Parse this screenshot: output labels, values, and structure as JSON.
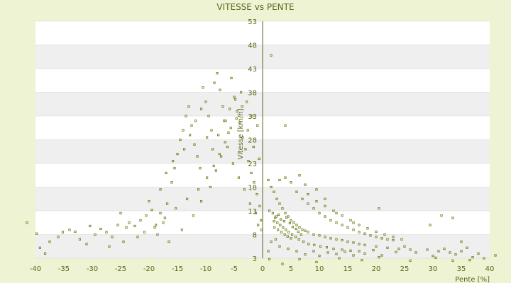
{
  "chart_data": {
    "type": "scatter",
    "title": "VITESSE vs PENTE",
    "xlabel": "Pente [%]",
    "ylabel": "Vitesse [km/h]",
    "xlim": [
      -40,
      40
    ],
    "ylim": [
      3,
      53
    ],
    "x_ticks": [
      "-40",
      "-35",
      "-30",
      "-25",
      "-20",
      "-15",
      "-10",
      "-5",
      "0",
      "5",
      "10",
      "15",
      "20",
      "25",
      "30",
      "35",
      "40"
    ],
    "y_ticks": [
      "3",
      "8",
      "13",
      "18",
      "23",
      "28",
      "33",
      "38",
      "43",
      "48",
      "53"
    ],
    "grid": true,
    "legend": "none",
    "colors": {
      "background": "#eef3d3",
      "plot_band_light": "#ffffff",
      "plot_band_dark": "#efefef",
      "grid": "#d8d8d8",
      "marker": "#6b7a12",
      "text": "#5a6418",
      "axis": "#5a6418"
    },
    "series": [
      {
        "points": [
          [
            -41.5,
            10.5
          ],
          [
            -39.8,
            8.2
          ],
          [
            -39.2,
            5.2
          ],
          [
            -38.3,
            4.0
          ],
          [
            -37.5,
            6.5
          ],
          [
            -36.0,
            7.5
          ],
          [
            -35.2,
            8.5
          ],
          [
            -34.0,
            9.0
          ],
          [
            -33.0,
            8.6
          ],
          [
            -32.2,
            7.0
          ],
          [
            -31.0,
            6.0
          ],
          [
            -30.4,
            9.8
          ],
          [
            -29.5,
            8.0
          ],
          [
            -28.5,
            9.2
          ],
          [
            -27.5,
            8.5
          ],
          [
            -26.5,
            7.5
          ],
          [
            -25.5,
            10.0
          ],
          [
            -25.0,
            12.5
          ],
          [
            -24.0,
            9.5
          ],
          [
            -23.5,
            10.5
          ],
          [
            -22.5,
            9.8
          ],
          [
            -21.5,
            11.0
          ],
          [
            -20.5,
            12.0
          ],
          [
            -19.5,
            13.2
          ],
          [
            -19.0,
            9.5
          ],
          [
            -18.0,
            12.5
          ],
          [
            -17.5,
            10.5
          ],
          [
            -16.8,
            14.5
          ],
          [
            -16.0,
            19.0
          ],
          [
            -15.5,
            22.0
          ],
          [
            -15.0,
            25.0
          ],
          [
            -14.5,
            28.0
          ],
          [
            -14.0,
            30.0
          ],
          [
            -13.5,
            33.0
          ],
          [
            -13.0,
            35.0
          ],
          [
            -12.5,
            31.0
          ],
          [
            -12.0,
            27.0
          ],
          [
            -11.5,
            24.5
          ],
          [
            -11.0,
            22.0
          ],
          [
            -10.5,
            39.0
          ],
          [
            -10.0,
            36.0
          ],
          [
            -9.5,
            33.0
          ],
          [
            -9.0,
            30.0
          ],
          [
            -8.5,
            40.0
          ],
          [
            -8.0,
            42.0
          ],
          [
            -7.5,
            38.5
          ],
          [
            -7.0,
            35.0
          ],
          [
            -6.5,
            32.0
          ],
          [
            -6.0,
            29.5
          ],
          [
            -5.5,
            41.0
          ],
          [
            -5.0,
            37.0
          ],
          [
            -4.5,
            34.0
          ],
          [
            -4.0,
            31.5
          ],
          [
            -3.5,
            28.5
          ],
          [
            -3.0,
            26.0
          ],
          [
            -2.5,
            23.5
          ],
          [
            -2.0,
            21.0
          ],
          [
            -1.5,
            19.0
          ],
          [
            -1.0,
            16.5
          ],
          [
            -0.5,
            14.0
          ],
          [
            -0.3,
            11.0
          ],
          [
            -0.2,
            9.0
          ],
          [
            -22.0,
            7.5
          ],
          [
            -18.5,
            8.0
          ],
          [
            -16.5,
            6.5
          ],
          [
            -14.2,
            9.0
          ],
          [
            -12.2,
            12.0
          ],
          [
            -10.8,
            15.0
          ],
          [
            -9.2,
            18.0
          ],
          [
            -8.2,
            21.5
          ],
          [
            -7.3,
            24.5
          ],
          [
            -6.2,
            26.5
          ],
          [
            -5.2,
            23.0
          ],
          [
            -4.2,
            20.0
          ],
          [
            -3.2,
            17.5
          ],
          [
            -2.2,
            14.5
          ],
          [
            -1.2,
            12.5
          ],
          [
            -0.8,
            10.0
          ],
          [
            -20.0,
            15.0
          ],
          [
            -18.0,
            17.5
          ],
          [
            -17.0,
            21.0
          ],
          [
            -15.8,
            23.5
          ],
          [
            -13.8,
            26.0
          ],
          [
            -12.8,
            29.0
          ],
          [
            -11.8,
            32.0
          ],
          [
            -10.8,
            34.5
          ],
          [
            -9.8,
            28.5
          ],
          [
            -8.8,
            26.0
          ],
          [
            -7.8,
            29.0
          ],
          [
            -6.8,
            32.0
          ],
          [
            -5.8,
            34.5
          ],
          [
            -4.8,
            36.5
          ],
          [
            -3.8,
            38.0
          ],
          [
            -2.8,
            36.0
          ],
          [
            -1.8,
            33.0
          ],
          [
            -0.9,
            31.0
          ],
          [
            -27.0,
            5.5
          ],
          [
            -24.5,
            6.5
          ],
          [
            -20.8,
            8.5
          ],
          [
            -18.8,
            10.0
          ],
          [
            -17.2,
            11.5
          ],
          [
            -15.3,
            13.5
          ],
          [
            -13.3,
            15.5
          ],
          [
            -11.3,
            17.5
          ],
          [
            -9.8,
            20.0
          ],
          [
            -8.6,
            22.5
          ],
          [
            -7.6,
            25.0
          ],
          [
            -6.6,
            27.5
          ],
          [
            -5.6,
            30.5
          ],
          [
            -4.6,
            32.5
          ],
          [
            -3.6,
            35.0
          ],
          [
            -2.6,
            30.0
          ],
          [
            -1.6,
            26.5
          ],
          [
            -0.6,
            24.0
          ],
          [
            1.5,
            45.8
          ],
          [
            4.0,
            31.0
          ],
          [
            1.0,
            19.5
          ],
          [
            1.5,
            18.0
          ],
          [
            2.0,
            17.0
          ],
          [
            2.5,
            15.5
          ],
          [
            3.0,
            14.5
          ],
          [
            3.5,
            13.5
          ],
          [
            4.0,
            12.5
          ],
          [
            4.5,
            11.8
          ],
          [
            5.0,
            11.0
          ],
          [
            5.5,
            10.5
          ],
          [
            6.0,
            10.0
          ],
          [
            6.5,
            9.5
          ],
          [
            7.0,
            9.0
          ],
          [
            7.5,
            8.8
          ],
          [
            8.0,
            8.5
          ],
          [
            9.0,
            8.0
          ],
          [
            10.0,
            7.8
          ],
          [
            11.0,
            7.5
          ],
          [
            12.0,
            7.2
          ],
          [
            13.0,
            7.0
          ],
          [
            14.0,
            6.8
          ],
          [
            15.0,
            6.5
          ],
          [
            16.0,
            6.3
          ],
          [
            17.0,
            6.0
          ],
          [
            18.0,
            5.8
          ],
          [
            20.0,
            5.5
          ],
          [
            22.0,
            5.2
          ],
          [
            24.0,
            5.0
          ],
          [
            26.0,
            4.8
          ],
          [
            1.2,
            13.0
          ],
          [
            1.8,
            12.5
          ],
          [
            2.2,
            11.5
          ],
          [
            2.6,
            10.5
          ],
          [
            3.1,
            10.0
          ],
          [
            3.6,
            9.5
          ],
          [
            4.1,
            9.0
          ],
          [
            4.6,
            8.5
          ],
          [
            5.2,
            8.0
          ],
          [
            5.8,
            7.5
          ],
          [
            6.4,
            7.0
          ],
          [
            7.2,
            6.5
          ],
          [
            8.1,
            6.0
          ],
          [
            9.1,
            5.8
          ],
          [
            10.2,
            5.5
          ],
          [
            11.3,
            5.3
          ],
          [
            12.5,
            5.0
          ],
          [
            14.0,
            4.8
          ],
          [
            15.5,
            4.6
          ],
          [
            17.0,
            4.5
          ],
          [
            2.0,
            10.8
          ],
          [
            2.4,
            11.8
          ],
          [
            2.8,
            12.2
          ],
          [
            3.2,
            11.2
          ],
          [
            3.8,
            10.8
          ],
          [
            4.2,
            11.6
          ],
          [
            4.8,
            10.4
          ],
          [
            5.3,
            9.6
          ],
          [
            5.9,
            9.2
          ],
          [
            6.3,
            8.6
          ],
          [
            6.8,
            8.0
          ],
          [
            2.1,
            9.5
          ],
          [
            2.7,
            9.0
          ],
          [
            3.3,
            8.5
          ],
          [
            3.9,
            8.0
          ],
          [
            4.4,
            7.6
          ],
          [
            5.0,
            7.2
          ],
          [
            6.0,
            17.0
          ],
          [
            7.0,
            15.5
          ],
          [
            8.0,
            14.5
          ],
          [
            9.0,
            13.5
          ],
          [
            10.0,
            12.5
          ],
          [
            11.0,
            11.8
          ],
          [
            12.0,
            11.0
          ],
          [
            13.0,
            10.5
          ],
          [
            14.0,
            10.0
          ],
          [
            15.0,
            9.5
          ],
          [
            16.0,
            9.0
          ],
          [
            17.0,
            8.5
          ],
          [
            18.0,
            8.2
          ],
          [
            19.0,
            7.8
          ],
          [
            20.0,
            7.5
          ],
          [
            21.0,
            7.2
          ],
          [
            22.0,
            7.0
          ],
          [
            23.0,
            6.8
          ],
          [
            8.0,
            16.5
          ],
          [
            9.5,
            15.0
          ],
          [
            11.0,
            14.0
          ],
          [
            12.5,
            13.0
          ],
          [
            14.0,
            12.0
          ],
          [
            15.5,
            11.0
          ],
          [
            17.0,
            10.0
          ],
          [
            18.5,
            9.3
          ],
          [
            20.0,
            8.6
          ],
          [
            21.5,
            8.0
          ],
          [
            23.0,
            7.5
          ],
          [
            24.5,
            7.0
          ],
          [
            1.0,
            4.5
          ],
          [
            1.5,
            6.5
          ],
          [
            2.3,
            7.0
          ],
          [
            3.0,
            5.5
          ],
          [
            4.5,
            5.0
          ],
          [
            6.0,
            4.5
          ],
          [
            7.5,
            3.8
          ],
          [
            9.0,
            4.5
          ],
          [
            10.0,
            3.5
          ],
          [
            11.5,
            4.2
          ],
          [
            13.0,
            3.9
          ],
          [
            14.5,
            4.4
          ],
          [
            16.0,
            3.6
          ],
          [
            18.0,
            4.0
          ],
          [
            19.5,
            4.7
          ],
          [
            21.0,
            3.6
          ],
          [
            23.5,
            4.3
          ],
          [
            25.0,
            5.5
          ],
          [
            27.0,
            4.2
          ],
          [
            29.0,
            4.8
          ],
          [
            30.0,
            3.5
          ],
          [
            31.0,
            4.5
          ],
          [
            32.0,
            5.0
          ],
          [
            33.0,
            4.2
          ],
          [
            34.0,
            3.8
          ],
          [
            35.0,
            4.5
          ],
          [
            36.0,
            5.2
          ],
          [
            37.0,
            3.2
          ],
          [
            38.0,
            4.0
          ],
          [
            39.0,
            3.0
          ],
          [
            1.2,
            2.8
          ],
          [
            3.5,
            1.8
          ],
          [
            6.5,
            2.8
          ],
          [
            9.5,
            2.2
          ],
          [
            13.5,
            3.0
          ],
          [
            17.5,
            2.6
          ],
          [
            20.5,
            3.2
          ],
          [
            26.0,
            2.5
          ],
          [
            30.5,
            3.1
          ],
          [
            33.5,
            2.5
          ],
          [
            36.5,
            2.6
          ],
          [
            41.0,
            3.6
          ],
          [
            20.5,
            13.5
          ],
          [
            29.5,
            10.0
          ],
          [
            31.5,
            12.0
          ],
          [
            33.5,
            11.5
          ],
          [
            35.0,
            6.5
          ],
          [
            16.0,
            10.5
          ],
          [
            13.0,
            12.5
          ],
          [
            11.0,
            15.5
          ],
          [
            9.5,
            17.5
          ],
          [
            7.5,
            18.5
          ],
          [
            5.0,
            19.0
          ],
          [
            4.0,
            20.0
          ],
          [
            3.0,
            19.5
          ],
          [
            6.5,
            20.5
          ]
        ]
      }
    ]
  }
}
